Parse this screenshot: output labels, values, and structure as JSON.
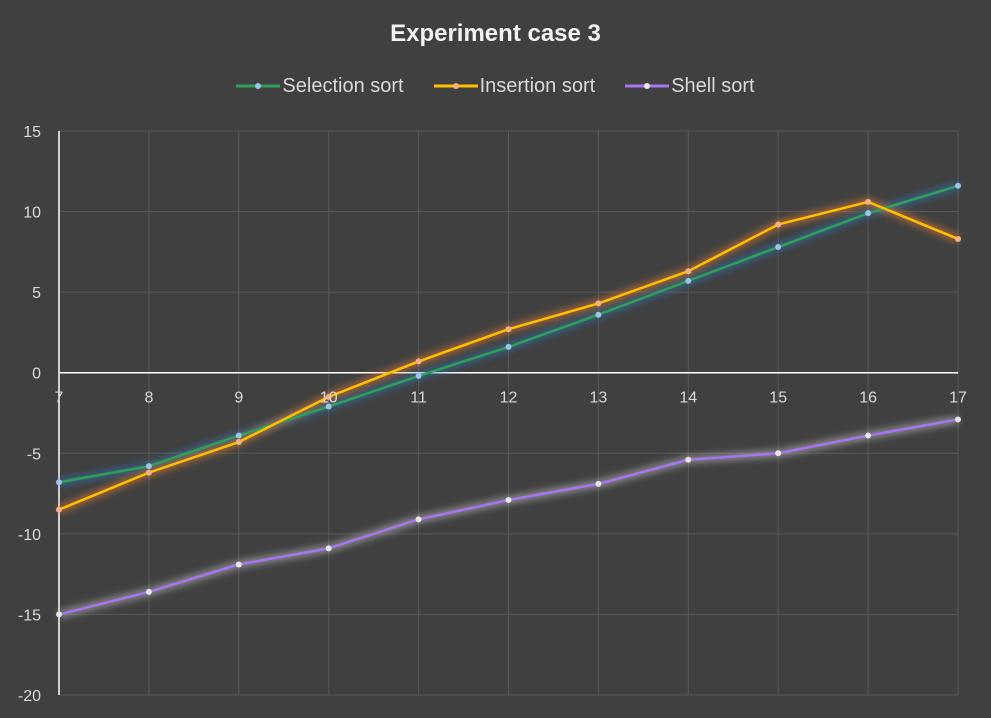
{
  "chart_data": {
    "type": "line",
    "title": "Experiment case 3",
    "xlabel": "",
    "ylabel": "",
    "x": [
      7,
      8,
      9,
      10,
      11,
      12,
      13,
      14,
      15,
      16,
      17
    ],
    "xlim": [
      7,
      17
    ],
    "ylim": [
      -20,
      15
    ],
    "yticks": [
      -20,
      -15,
      -10,
      -5,
      0,
      5,
      10,
      15
    ],
    "grid": true,
    "legend_position": "top",
    "series": [
      {
        "name": "Selection sort",
        "color": "#2da05a",
        "marker_color": "#9dc3e6",
        "glow": "#2e75b6",
        "values": [
          -6.8,
          -5.8,
          -3.9,
          -2.1,
          -0.2,
          1.6,
          3.6,
          5.7,
          7.8,
          9.9,
          11.6
        ]
      },
      {
        "name": "Insertion sort",
        "color": "#ffc000",
        "marker_color": "#f4b183",
        "glow": "#ed7d31",
        "values": [
          -8.5,
          -6.2,
          -4.3,
          -1.5,
          0.7,
          2.7,
          4.3,
          6.3,
          9.2,
          10.6,
          8.3
        ]
      },
      {
        "name": "Shell sort",
        "color": "#a774f2",
        "marker_color": "#e6e6e6",
        "glow": "#bfbfbf",
        "values": [
          -15.0,
          -13.6,
          -11.9,
          -10.9,
          -9.1,
          -7.9,
          -6.9,
          -5.4,
          -5.0,
          -3.9,
          -2.9
        ]
      }
    ]
  }
}
